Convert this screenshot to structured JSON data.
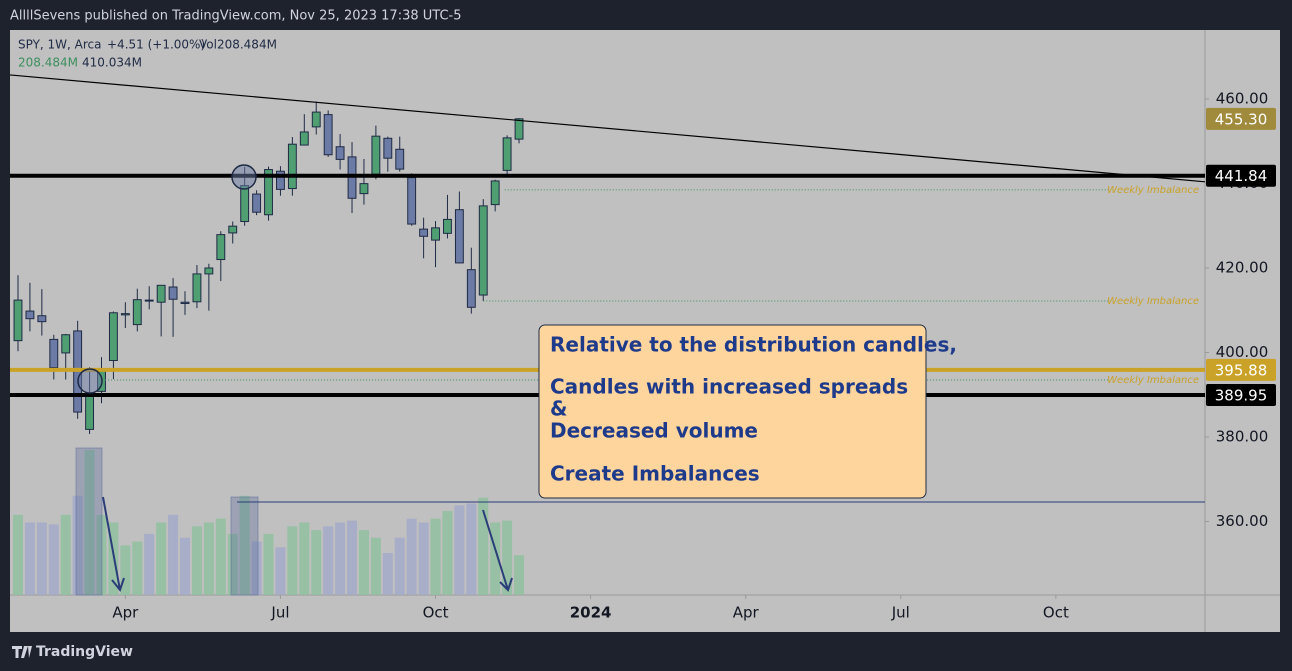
{
  "publisher": "AllllSevens published on TradingView.com, Nov 25, 2023 17:38 UTC-5",
  "footer": "TradingView",
  "legend": {
    "symbol": "SPY, 1W, Arca",
    "change": "+4.51 (+1.00%)",
    "volume": "Vol208.484M",
    "volume_value": "208.484M",
    "volume_ma": "410.034M"
  },
  "annotation": [
    "Relative to the distribution candles,",
    "Candles with increased spreads",
    "&",
    "Decreased volume",
    "Create Imbalances"
  ],
  "chart_data": {
    "type": "candlestick",
    "categories": [
      null,
      null,
      null,
      null,
      null,
      null,
      null,
      null,
      null,
      null,
      null,
      null,
      null,
      null,
      null,
      null,
      null,
      null,
      null,
      null,
      null,
      null,
      null,
      null,
      null,
      null,
      null,
      null,
      null,
      null,
      null,
      null,
      null,
      null,
      null,
      null,
      null,
      null,
      null,
      null,
      null,
      null,
      null
    ],
    "open": [
      402.8,
      409.8,
      408.7,
      403.1,
      399.9,
      405.1,
      381.8,
      390.8,
      398.1,
      408.9,
      406.6,
      412.4,
      411.9,
      415.5,
      411.9,
      412.0,
      418.6,
      422.0,
      428.3,
      431.0,
      437.5,
      432.6,
      442.9,
      438.8,
      449.1,
      453.4,
      456.3,
      448.7,
      446.3,
      437.6,
      442.2,
      450.7,
      448.1,
      441.4,
      429.2,
      426.6,
      428.2,
      433.8,
      419.6,
      413.6,
      435.0,
      443.1,
      450.5
    ],
    "high": [
      418.3,
      416.5,
      415.0,
      404.2,
      404.4,
      407.5,
      396.5,
      398.9,
      409.7,
      411.9,
      415.1,
      415.7,
      415.9,
      417.6,
      414.5,
      420.7,
      421.0,
      428.7,
      431.0,
      443.9,
      438.4,
      444.0,
      444.1,
      451.0,
      456.4,
      459.4,
      457.3,
      451.7,
      449.8,
      445.8,
      453.7,
      451.1,
      451.1,
      442.4,
      431.9,
      431.1,
      437.3,
      438.1,
      424.8,
      436.3,
      440.9,
      451.4,
      455.5
    ],
    "low": [
      400.3,
      405.0,
      404.0,
      393.6,
      393.6,
      384.3,
      380.7,
      388.0,
      393.7,
      405.8,
      405.0,
      410.2,
      403.8,
      403.7,
      408.9,
      410.5,
      409.9,
      416.9,
      425.8,
      430.0,
      432.5,
      431.2,
      437.1,
      437.1,
      449.0,
      451.6,
      446.3,
      443.3,
      433.0,
      435.0,
      441.0,
      442.8,
      442.8,
      429.99,
      422.3,
      420.2,
      427.0,
      421.1,
      409.2,
      412.2,
      433.4,
      442.1,
      449.5
    ],
    "close": [
      412.4,
      408.0,
      407.3,
      396.4,
      404.2,
      385.9,
      389.99,
      395.8,
      409.4,
      409.2,
      412.5,
      412.2,
      415.9,
      412.6,
      411.6,
      418.6,
      420.0,
      427.9,
      429.9,
      439.5,
      433.2,
      443.3,
      438.6,
      449.3,
      452.2,
      456.9,
      446.8,
      445.7,
      436.5,
      439.97,
      451.2,
      445.99,
      443.4,
      430.4,
      427.5,
      429.5,
      431.5,
      421.2,
      410.7,
      434.7,
      440.6,
      450.8,
      455.3
    ],
    "volume": [
      420,
      380,
      380,
      370,
      420,
      520,
      760,
      420,
      380,
      260,
      280,
      320,
      380,
      420,
      300,
      360,
      380,
      400,
      320,
      520,
      280,
      320,
      250,
      360,
      380,
      340,
      360,
      380,
      390,
      340,
      300,
      220,
      300,
      400,
      380,
      400,
      440,
      470,
      480,
      510,
      380,
      390,
      208.484
    ],
    "up_color": "#4f9f72",
    "down_color": "#6c7ba6",
    "up_volume_color": "#8fbf9f",
    "down_volume_color": "#a3aac8",
    "xlim": [
      -0.67,
      99.5
    ],
    "ylim": [
      342.6,
      476.33
    ],
    "xticks": [
      {
        "value": 9,
        "label": "Apr"
      },
      {
        "value": 22,
        "label": "Jul"
      },
      {
        "value": 35,
        "label": "Oct"
      },
      {
        "value": 48,
        "label": "2024"
      },
      {
        "value": 61,
        "label": "Apr"
      },
      {
        "value": 74,
        "label": "Jul"
      },
      {
        "value": 87,
        "label": "Oct"
      }
    ],
    "yticks": [
      {
        "value": 360,
        "label": "360.00"
      },
      {
        "value": 380,
        "label": "380.00"
      },
      {
        "value": 400,
        "label": "400.00"
      },
      {
        "value": 420,
        "label": "420.00"
      },
      {
        "value": 440,
        "label": "440.00"
      },
      {
        "value": 460,
        "label": "460.00"
      }
    ],
    "trendline": {
      "x": [
        -0.67,
        99.5
      ],
      "values": [
        465.7,
        440.4
      ],
      "color": "#000000"
    },
    "levels": [
      {
        "value": 441.84,
        "label": "441.84",
        "color": "#000000"
      },
      {
        "value": 395.88,
        "label": "395.88",
        "color": "#c9a227"
      },
      {
        "value": 389.95,
        "label": "389.95",
        "color": "#000000"
      }
    ],
    "last_price": {
      "value": 455.3,
      "label": "455.30",
      "color": "#a08a3c"
    },
    "imbalances": [
      {
        "start": 40.8,
        "end": 91.5,
        "value": 438.5,
        "label": "Weekly Imbalance"
      },
      {
        "start": 39.0,
        "end": 91.5,
        "value": 412.2,
        "label": "Weekly Imbalance"
      },
      {
        "start": 7.3,
        "end": 91.5,
        "value": 393.5,
        "label": "Weekly Imbalance"
      }
    ]
  }
}
